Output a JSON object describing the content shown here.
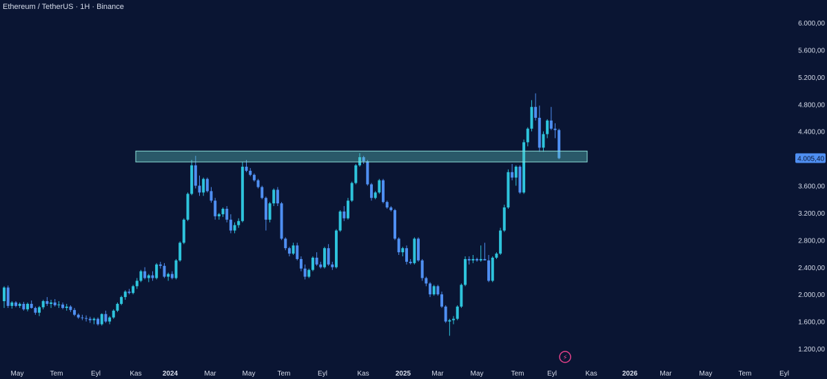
{
  "header": {
    "title": "Ethereum / TetherUS · 1H · Binance"
  },
  "colors": {
    "background": "#0a1533",
    "candle_up": "#2ec4dc",
    "candle_down": "#4f8ff2",
    "zone_fill": "#5fc7c2",
    "zone_border": "#8fe3dc",
    "price_tag": "#4f8ff2",
    "alert_icon": "#e5418a"
  },
  "chart_data": {
    "type": "candlestick",
    "y_ticks": [
      "6.000,00",
      "5.600,00",
      "5.200,00",
      "4.800,00",
      "4.400,00",
      "3.600,00",
      "3.200,00",
      "2.800,00",
      "2.400,00",
      "2.000,00",
      "1.600,00",
      "1.200,00"
    ],
    "y_tick_values": [
      6000,
      5600,
      5200,
      4800,
      4400,
      3600,
      3200,
      2800,
      2400,
      2000,
      1600,
      1200
    ],
    "ylim": [
      1100,
      6200
    ],
    "x_tick_labels": [
      "May",
      "Tem",
      "Eyl",
      "Kas",
      "2024",
      "Mar",
      "May",
      "Tem",
      "Eyl",
      "Kas",
      "2025",
      "Mar",
      "May",
      "Tem",
      "Eyl",
      "Kas",
      "2026",
      "Mar",
      "May",
      "Tem",
      "Eyl"
    ],
    "x_tick_major": [
      false,
      false,
      false,
      false,
      true,
      false,
      false,
      false,
      false,
      false,
      true,
      false,
      false,
      false,
      false,
      false,
      true,
      false,
      false,
      false,
      false
    ],
    "current_price": 4005.4,
    "current_price_label": "4.005,40",
    "resistance_zone": {
      "low": 3950,
      "high": 4110,
      "start_candle": 33,
      "end_candle": 144
    },
    "candles": [
      [
        1900,
        2120,
        1800,
        2100
      ],
      [
        2100,
        2130,
        1800,
        1830
      ],
      [
        1830,
        1900,
        1790,
        1880
      ],
      [
        1880,
        1900,
        1810,
        1830
      ],
      [
        1830,
        1880,
        1800,
        1860
      ],
      [
        1860,
        1890,
        1760,
        1780
      ],
      [
        1780,
        1880,
        1750,
        1860
      ],
      [
        1860,
        1910,
        1790,
        1800
      ],
      [
        1800,
        1820,
        1700,
        1730
      ],
      [
        1730,
        1830,
        1680,
        1810
      ],
      [
        1810,
        1920,
        1780,
        1900
      ],
      [
        1900,
        1960,
        1830,
        1860
      ],
      [
        1860,
        1920,
        1800,
        1880
      ],
      [
        1880,
        1930,
        1820,
        1840
      ],
      [
        1840,
        1900,
        1800,
        1850
      ],
      [
        1850,
        1880,
        1780,
        1800
      ],
      [
        1800,
        1860,
        1760,
        1820
      ],
      [
        1820,
        1840,
        1740,
        1770
      ],
      [
        1770,
        1800,
        1680,
        1700
      ],
      [
        1700,
        1720,
        1640,
        1660
      ],
      [
        1660,
        1700,
        1620,
        1650
      ],
      [
        1650,
        1690,
        1600,
        1640
      ],
      [
        1640,
        1670,
        1580,
        1620
      ],
      [
        1620,
        1660,
        1560,
        1640
      ],
      [
        1640,
        1660,
        1540,
        1560
      ],
      [
        1560,
        1720,
        1540,
        1710
      ],
      [
        1710,
        1760,
        1580,
        1600
      ],
      [
        1600,
        1680,
        1560,
        1660
      ],
      [
        1660,
        1780,
        1640,
        1760
      ],
      [
        1760,
        1880,
        1740,
        1860
      ],
      [
        1860,
        1980,
        1840,
        1960
      ],
      [
        1960,
        2060,
        1920,
        2040
      ],
      [
        2040,
        2080,
        2000,
        2020
      ],
      [
        2020,
        2140,
        2000,
        2120
      ],
      [
        2120,
        2240,
        2080,
        2200
      ],
      [
        2200,
        2360,
        2180,
        2340
      ],
      [
        2340,
        2400,
        2220,
        2240
      ],
      [
        2240,
        2300,
        2180,
        2280
      ],
      [
        2280,
        2340,
        2200,
        2240
      ],
      [
        2240,
        2460,
        2220,
        2440
      ],
      [
        2440,
        2480,
        2380,
        2420
      ],
      [
        2420,
        2460,
        2240,
        2260
      ],
      [
        2260,
        2320,
        2200,
        2300
      ],
      [
        2300,
        2340,
        2220,
        2240
      ],
      [
        2240,
        2520,
        2220,
        2500
      ],
      [
        2500,
        2780,
        2480,
        2760
      ],
      [
        2760,
        3120,
        2740,
        3100
      ],
      [
        3100,
        3500,
        3080,
        3480
      ],
      [
        3480,
        3980,
        3460,
        3900
      ],
      [
        3900,
        4040,
        3560,
        3600
      ],
      [
        3600,
        3750,
        3450,
        3500
      ],
      [
        3500,
        3720,
        3450,
        3700
      ],
      [
        3700,
        3720,
        3500,
        3520
      ],
      [
        3520,
        3580,
        3350,
        3380
      ],
      [
        3380,
        3420,
        3100,
        3150
      ],
      [
        3150,
        3200,
        3100,
        3180
      ],
      [
        3180,
        3280,
        3140,
        3260
      ],
      [
        3260,
        3300,
        3060,
        3100
      ],
      [
        3100,
        3180,
        2900,
        2940
      ],
      [
        2940,
        3060,
        2900,
        3020
      ],
      [
        3020,
        3120,
        2980,
        3080
      ],
      [
        3080,
        3950,
        3060,
        3880
      ],
      [
        3880,
        3980,
        3800,
        3820
      ],
      [
        3820,
        3860,
        3740,
        3760
      ],
      [
        3760,
        3780,
        3660,
        3680
      ],
      [
        3680,
        3700,
        3560,
        3580
      ],
      [
        3580,
        3600,
        3400,
        3420
      ],
      [
        3420,
        3440,
        2940,
        3100
      ],
      [
        3100,
        3360,
        3060,
        3340
      ],
      [
        3340,
        3560,
        3300,
        3540
      ],
      [
        3540,
        3580,
        3300,
        3340
      ],
      [
        3340,
        3360,
        2800,
        2820
      ],
      [
        2820,
        2840,
        2650,
        2680
      ],
      [
        2680,
        2700,
        2560,
        2600
      ],
      [
        2600,
        2760,
        2580,
        2720
      ],
      [
        2720,
        2760,
        2500,
        2520
      ],
      [
        2520,
        2560,
        2340,
        2380
      ],
      [
        2380,
        2440,
        2220,
        2260
      ],
      [
        2260,
        2380,
        2240,
        2360
      ],
      [
        2360,
        2560,
        2340,
        2540
      ],
      [
        2540,
        2620,
        2420,
        2440
      ],
      [
        2440,
        2480,
        2380,
        2400
      ],
      [
        2400,
        2700,
        2380,
        2680
      ],
      [
        2680,
        2740,
        2420,
        2440
      ],
      [
        2440,
        2480,
        2360,
        2400
      ],
      [
        2400,
        2960,
        2380,
        2940
      ],
      [
        2940,
        3240,
        2920,
        3220
      ],
      [
        3220,
        3300,
        3080,
        3120
      ],
      [
        3120,
        3420,
        3100,
        3380
      ],
      [
        3380,
        3660,
        3360,
        3640
      ],
      [
        3640,
        3920,
        3620,
        3900
      ],
      [
        3900,
        4080,
        3880,
        4020
      ],
      [
        4020,
        4040,
        3920,
        3960
      ],
      [
        3960,
        3980,
        3600,
        3620
      ],
      [
        3620,
        3640,
        3380,
        3420
      ],
      [
        3420,
        3520,
        3400,
        3500
      ],
      [
        3500,
        3700,
        3480,
        3680
      ],
      [
        3680,
        3700,
        3340,
        3360
      ],
      [
        3360,
        3380,
        3260,
        3280
      ],
      [
        3280,
        3300,
        3220,
        3240
      ],
      [
        3240,
        3260,
        2800,
        2820
      ],
      [
        2820,
        2840,
        2580,
        2620
      ],
      [
        2620,
        2700,
        2560,
        2680
      ],
      [
        2680,
        2720,
        2440,
        2480
      ],
      [
        2480,
        2520,
        2440,
        2460
      ],
      [
        2460,
        2840,
        2440,
        2820
      ],
      [
        2820,
        2840,
        2480,
        2500
      ],
      [
        2500,
        2520,
        2200,
        2240
      ],
      [
        2240,
        2260,
        2120,
        2160
      ],
      [
        2160,
        2180,
        1960,
        2000
      ],
      [
        2000,
        2140,
        1980,
        2120
      ],
      [
        2120,
        2140,
        1980,
        2000
      ],
      [
        2000,
        2040,
        1800,
        1820
      ],
      [
        1820,
        1840,
        1580,
        1600
      ],
      [
        1600,
        1640,
        1390,
        1620
      ],
      [
        1620,
        1680,
        1560,
        1640
      ],
      [
        1640,
        1840,
        1620,
        1820
      ],
      [
        1820,
        2160,
        1800,
        2140
      ],
      [
        2140,
        2560,
        2120,
        2520
      ],
      [
        2520,
        2560,
        2440,
        2500
      ],
      [
        2500,
        2580,
        2460,
        2520
      ],
      [
        2520,
        2540,
        2480,
        2500
      ],
      [
        2500,
        2720,
        2480,
        2520
      ],
      [
        2520,
        2760,
        2500,
        2500
      ],
      [
        2500,
        2580,
        2180,
        2200
      ],
      [
        2200,
        2560,
        2180,
        2540
      ],
      [
        2540,
        2620,
        2520,
        2600
      ],
      [
        2600,
        2980,
        2580,
        2940
      ],
      [
        2940,
        3320,
        2920,
        3280
      ],
      [
        3280,
        3840,
        3260,
        3800
      ],
      [
        3800,
        3920,
        3680,
        3720
      ],
      [
        3720,
        3900,
        3600,
        3880
      ],
      [
        3880,
        3900,
        3480,
        3500
      ],
      [
        3500,
        4280,
        3480,
        4240
      ],
      [
        4240,
        4460,
        4180,
        4440
      ],
      [
        4440,
        4860,
        4400,
        4760
      ],
      [
        4760,
        4960,
        4560,
        4600
      ],
      [
        4600,
        4780,
        4100,
        4160
      ],
      [
        4160,
        4400,
        4100,
        4360
      ],
      [
        4360,
        4580,
        4300,
        4560
      ],
      [
        4560,
        4760,
        4420,
        4440
      ],
      [
        4440,
        4520,
        4300,
        4420
      ],
      [
        4420,
        4440,
        3990,
        4005
      ]
    ]
  }
}
